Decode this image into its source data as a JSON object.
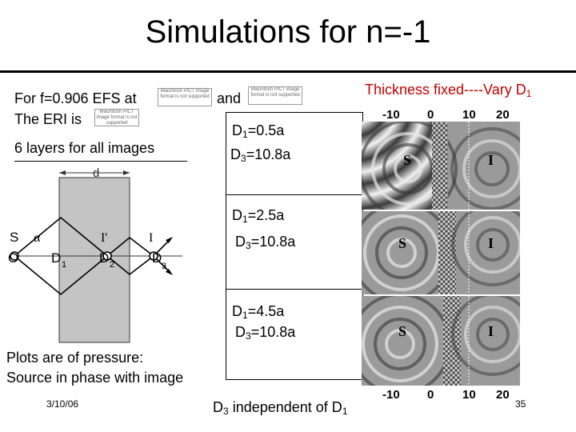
{
  "slide": {
    "title": "Simulations for n=-1",
    "intro_line1": "For f=0.906 EFS at",
    "intro_and": "and",
    "intro_line2": "The ERI is",
    "layers": "6 layers for all images",
    "pict_placeholder": "Macintosh PICT image format is not supported",
    "thickness_prefix": "Thickness fixed----Vary D",
    "thickness_sub": "1",
    "panel1": {
      "d1_label": "D",
      "d1_sub": "1",
      "d1_value": "=0.5a",
      "d3_label": "D",
      "d3_sub": "3",
      "d3_value": "=10.8a"
    },
    "panel2": {
      "d1_label": "D",
      "d1_sub": "1",
      "d1_value": "=2.5a",
      "d3_label": "D",
      "d3_sub": "3",
      "d3_value": "=10.8a"
    },
    "panel3": {
      "d1_label": "D",
      "d1_sub": "1",
      "d1_value": "=4.5a",
      "d3_label": "D",
      "d3_sub": "3",
      "d3_value": "=10.8a"
    },
    "plots_line1": "Plots are of pressure:",
    "plots_line2": "Source in phase with image",
    "date": "3/10/06",
    "conclusion_prefix": "D",
    "conclusion_sub3": "3",
    "conclusion_mid": " independent of D",
    "conclusion_sub1": "1",
    "page_number": "35"
  },
  "diagram": {
    "thickness_label": "d",
    "alpha": "α",
    "S": "S",
    "O": "O",
    "I_prime": "I'",
    "I": "I",
    "D1": "D",
    "D1_sub": "1",
    "D2": "D",
    "D2_sub": "2",
    "D3": "D",
    "D3_sub": "3"
  },
  "figure": {
    "axis_ticks": [
      "-10",
      "0",
      "10",
      "20"
    ],
    "source_label": "S",
    "image_label": "I"
  }
}
